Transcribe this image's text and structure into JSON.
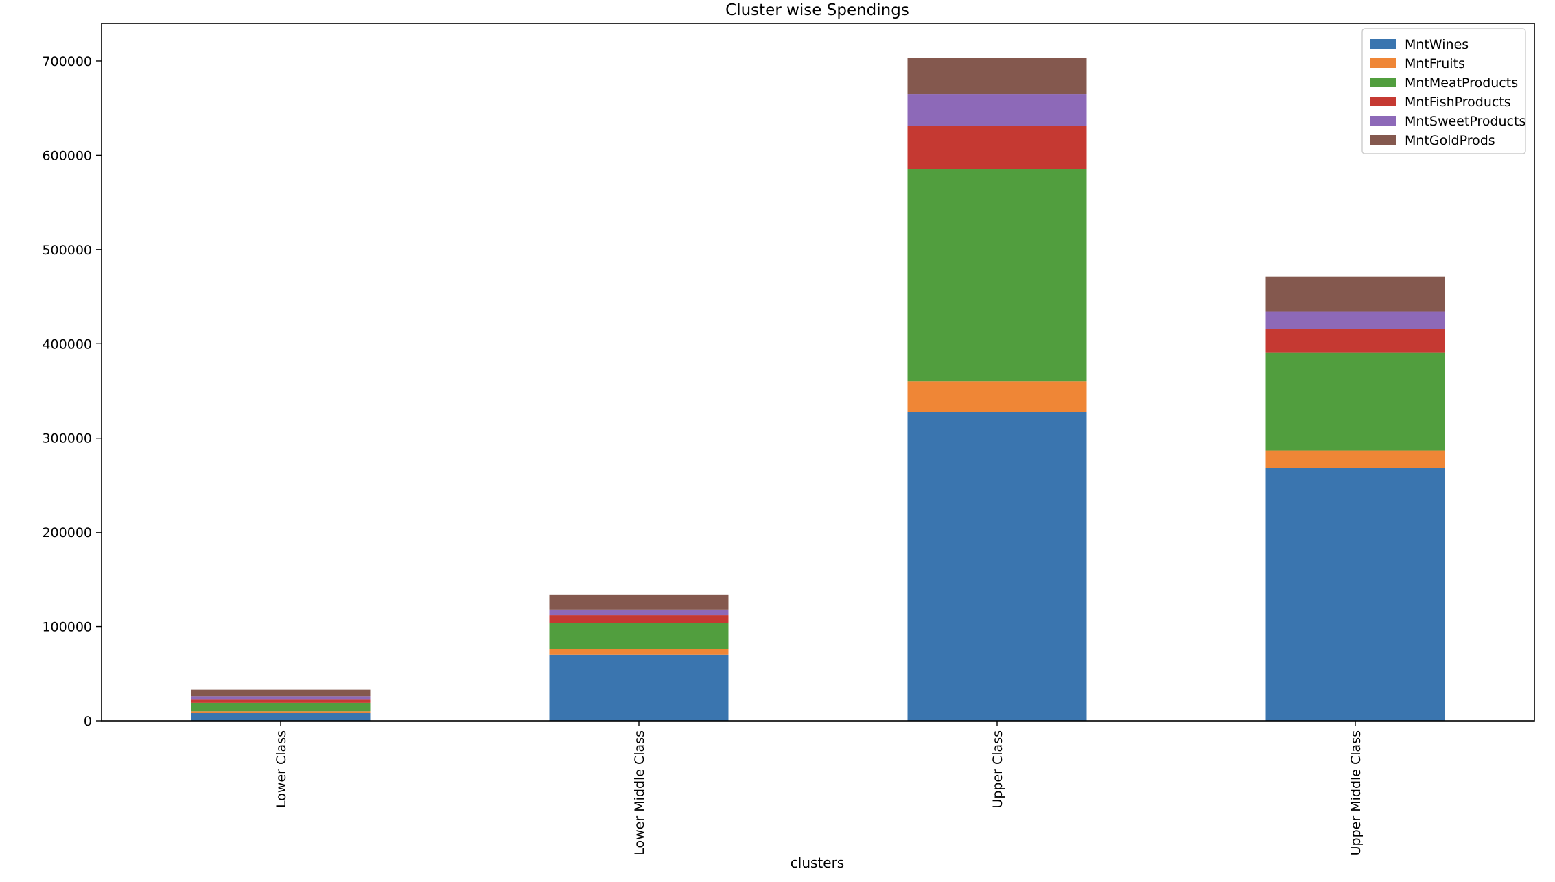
{
  "chart_data": {
    "type": "bar",
    "stacked": true,
    "title": "Cluster wise Spendings",
    "xlabel": "clusters",
    "ylabel": "",
    "categories": [
      "Lower Class",
      "Lower Middle Class",
      "Upper Class",
      "Upper Middle Class"
    ],
    "ylim": [
      0,
      740000
    ],
    "yticks": [
      0,
      100000,
      200000,
      300000,
      400000,
      500000,
      600000,
      700000
    ],
    "ytick_labels": [
      "0",
      "100000",
      "200000",
      "300000",
      "400000",
      "500000",
      "600000",
      "700000"
    ],
    "grid": false,
    "legend_position": "top-right",
    "series": [
      {
        "name": "MntWines",
        "color": "#3a75af",
        "values": [
          8000,
          70000,
          328000,
          268000
        ]
      },
      {
        "name": "MntFruits",
        "color": "#ef8636",
        "values": [
          2000,
          6000,
          32000,
          19000
        ]
      },
      {
        "name": "MntMeatProducts",
        "color": "#519e3e",
        "values": [
          9000,
          28000,
          225000,
          104000
        ]
      },
      {
        "name": "MntFishProducts",
        "color": "#c53932",
        "values": [
          4000,
          8000,
          46000,
          25000
        ]
      },
      {
        "name": "MntSweetProducts",
        "color": "#8d69b8",
        "values": [
          3000,
          6000,
          34000,
          18000
        ]
      },
      {
        "name": "MntGoldProds",
        "color": "#84584e",
        "values": [
          7000,
          16000,
          38000,
          37000
        ]
      }
    ]
  }
}
